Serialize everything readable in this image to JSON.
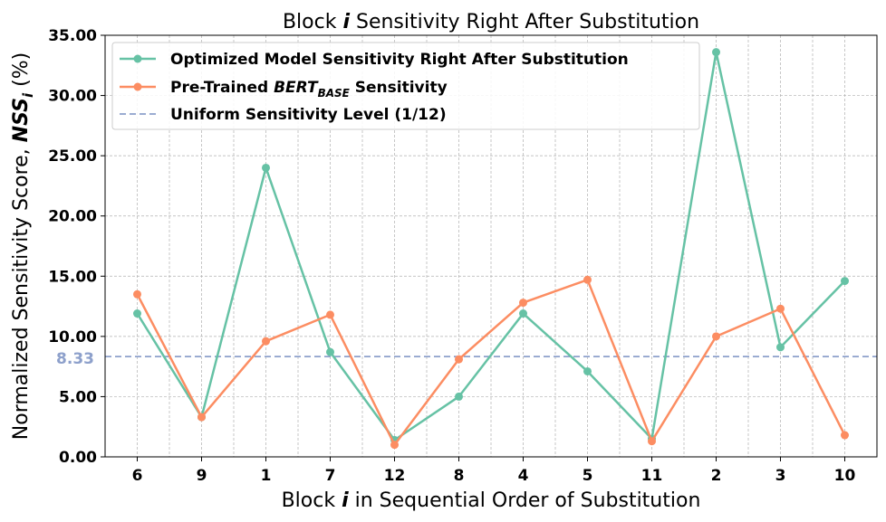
{
  "chart_data": {
    "type": "line",
    "title": {
      "prefix": "Block ",
      "var": "i",
      "suffix": " Sensitivity Right After Substitution"
    },
    "xlabel": {
      "prefix": "Block ",
      "var": "i",
      "suffix": " in Sequential Order of Substitution"
    },
    "ylabel": {
      "prefix": "Normalized Sensitivity Score, ",
      "var": "NSS",
      "sub": "i",
      "suffix": " (%)"
    },
    "categories": [
      "6",
      "9",
      "1",
      "7",
      "12",
      "8",
      "4",
      "5",
      "11",
      "2",
      "3",
      "10"
    ],
    "ylim": [
      0,
      35
    ],
    "yticks": [
      "0.00",
      "5.00",
      "10.00",
      "15.00",
      "20.00",
      "25.00",
      "30.00",
      "35.00"
    ],
    "grid": true,
    "legend_position": "top-left",
    "series": [
      {
        "name": "Optimized Model Sensitivity Right After Substitution",
        "color": "#66c2a5",
        "values": [
          11.9,
          3.3,
          24.0,
          8.7,
          1.4,
          5.0,
          11.9,
          7.1,
          1.5,
          33.6,
          9.1,
          14.6
        ]
      },
      {
        "name_parts": {
          "prefix": "Pre-Trained ",
          "var": "BERT",
          "sub": "BASE",
          "suffix": " Sensitivity"
        },
        "color": "#fc8d62",
        "values": [
          13.5,
          3.3,
          9.6,
          11.8,
          1.0,
          8.1,
          12.8,
          14.7,
          1.3,
          10.0,
          12.3,
          1.8
        ]
      }
    ],
    "reference_line": {
      "name": "Uniform Sensitivity Level (1/12)",
      "value": 8.33,
      "label": "8.33",
      "color": "#8da0cb",
      "style": "dashed"
    }
  }
}
